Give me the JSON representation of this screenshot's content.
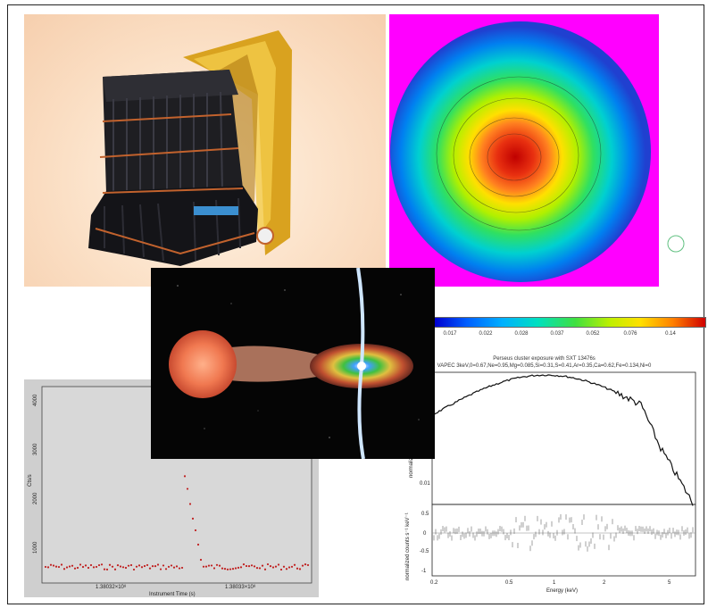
{
  "colorbar": {
    "ticks": [
      "0.017",
      "0.022",
      "0.028",
      "0.037",
      "0.052",
      "0.076",
      "0.14"
    ]
  },
  "lightcurve": {
    "ylabel": "Cts/s",
    "yticks": [
      "1000",
      "2000",
      "3000",
      "4000"
    ],
    "xticks": [
      "1.38032×10⁸",
      "1.38033×10⁸"
    ],
    "xlabel": "Instrument Time (s)"
  },
  "spectrum": {
    "title1": "Perseus cluster exposure with SXT 13476s",
    "title2": "VAPEC 3keV,0=0.67,Ne=0.95,Mg=0.085,Si=0.31,S=0.41,Ar=0.35,Ca=0.62,Fe=0.134,Ni=0",
    "ylabel_top": "normalized",
    "ylabel_bottom": "normalized counts s⁻¹ keV⁻¹",
    "ytick_top": "0.01",
    "yticks_bottom": [
      "0.5",
      "0",
      "-0.5",
      "-1"
    ],
    "xticks": [
      "0.2",
      "0.5",
      "1",
      "2",
      "5"
    ],
    "xlabel": "Energy (keV)"
  }
}
